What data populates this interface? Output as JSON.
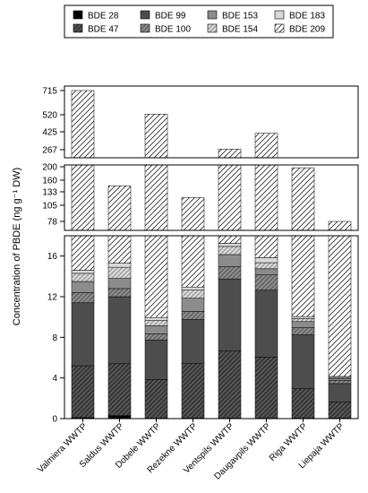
{
  "chart_data": {
    "type": "bar",
    "stacked": true,
    "broken_y_axis": true,
    "ylabel": "Concentration of PBDE (ng g⁻¹ DW)",
    "categories": [
      "Valmiera WWTP",
      "Saldus WWTP",
      "Dobele WWTP",
      "Rezekne WWTP",
      "Ventspils WWTP",
      "Daugavpils WWTP",
      "Riga WWTP",
      "Liepaja WWTP"
    ],
    "y_ticks_lower": [
      "0",
      "4",
      "8",
      "12",
      "16"
    ],
    "y_ticks_middle": [
      "78",
      "105",
      "133",
      "160",
      "200"
    ],
    "y_ticks_upper": [
      "267",
      "425",
      "520",
      "715"
    ],
    "ylim_lower": [
      0,
      18
    ],
    "ylim_middle": [
      60,
      220
    ],
    "ylim_upper": [
      230,
      760
    ],
    "legend_position": "top",
    "series": [
      {
        "name": "BDE 28",
        "pattern": "solid-black",
        "values": [
          0.1,
          0.3,
          0.05,
          0.05,
          0.05,
          0.05,
          0.05,
          0.05
        ]
      },
      {
        "name": "BDE 47",
        "pattern": "dark-hatch",
        "values": [
          5.1,
          5.1,
          3.8,
          5.4,
          6.6,
          6.0,
          2.9,
          1.6
        ]
      },
      {
        "name": "BDE 99",
        "pattern": "dark-solid",
        "values": [
          6.2,
          6.6,
          3.9,
          4.3,
          7.1,
          6.6,
          5.3,
          1.8
        ]
      },
      {
        "name": "BDE 100",
        "pattern": "grey-crosshatch",
        "values": [
          1.0,
          0.8,
          0.6,
          0.8,
          1.2,
          1.5,
          0.7,
          0.3
        ]
      },
      {
        "name": "BDE 153",
        "pattern": "mid-grey",
        "values": [
          1.1,
          1.0,
          0.8,
          1.3,
          1.2,
          0.6,
          0.6,
          0.2
        ]
      },
      {
        "name": "BDE 154",
        "pattern": "light-grey-hatch",
        "values": [
          0.8,
          1.1,
          0.5,
          0.8,
          0.8,
          0.6,
          0.3,
          0.1
        ]
      },
      {
        "name": "BDE 183",
        "pattern": "very-light-grey",
        "values": [
          0.3,
          0.4,
          0.3,
          0.3,
          0.3,
          0.5,
          0.2,
          0.1
        ]
      },
      {
        "name": "BDE 209",
        "pattern": "white-hatch",
        "values": [
          700,
          132,
          515,
          108,
          255,
          395,
          187,
          66
        ]
      }
    ],
    "totals": [
      715,
      147,
      525,
      121,
      272,
      412,
      197,
      70
    ]
  }
}
